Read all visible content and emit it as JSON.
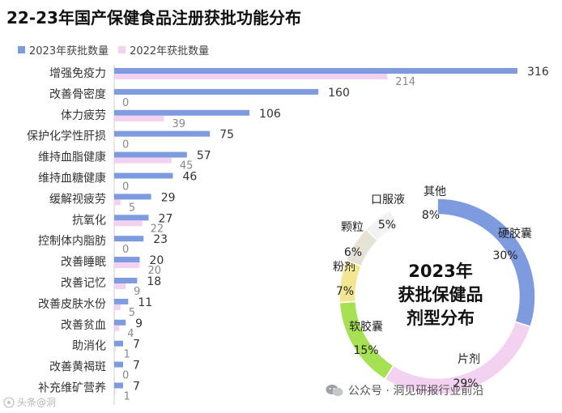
{
  "chart_data": [
    {
      "type": "bar",
      "title": "22-23年国产保健食品注册获批功能分布",
      "orientation": "horizontal",
      "categories": [
        "增强免疫力",
        "改善骨密度",
        "体力疲劳",
        "保护化学性肝损",
        "维持血脂健康",
        "维持血糖健康",
        "缓解视疲劳",
        "抗氧化",
        "控制体内脂肪",
        "改善睡眠",
        "改善记忆",
        "改善皮肤水份",
        "改善贫血",
        "助消化",
        "改善黄褐斑",
        "补充维矿营养"
      ],
      "series": [
        {
          "name": "2023年获批数量",
          "color": "#7e9be0",
          "values": [
            316,
            160,
            106,
            75,
            57,
            46,
            29,
            27,
            23,
            20,
            18,
            11,
            9,
            7,
            7,
            7
          ]
        },
        {
          "name": "2022年获批数量",
          "color": "#f2d2f0",
          "values": [
            214,
            0,
            39,
            0,
            45,
            0,
            5,
            22,
            0,
            20,
            9,
            5,
            4,
            1,
            0,
            1
          ]
        }
      ],
      "xlim": [
        0,
        316
      ],
      "legend": "top-left"
    },
    {
      "type": "pie",
      "style": "donut",
      "title_lines": [
        "2023年",
        "获批保健品",
        "剂型分布"
      ],
      "slices": [
        {
          "label": "硬胶囊",
          "value": 30,
          "display": "30%",
          "color": "#7e9be0"
        },
        {
          "label": "片剂",
          "value": 29,
          "display": "29%",
          "color": "#f2d2f0"
        },
        {
          "label": "软胶囊",
          "value": 15,
          "display": "15%",
          "color": "#a6e053"
        },
        {
          "label": "粉剂",
          "value": 7,
          "display": "7%",
          "color": "#f3e690"
        },
        {
          "label": "颗粒",
          "value": 6,
          "display": "6%",
          "color": "#e6e2d6"
        },
        {
          "label": "口服液",
          "value": 5,
          "display": "5%",
          "color": "#f2f2f2"
        },
        {
          "label": "其他",
          "value": 8,
          "display": "8%",
          "color": "#ffffff"
        }
      ]
    }
  ],
  "watermark": {
    "text": "公众号 · 洞见研报行业前沿"
  },
  "corner_watermark": {
    "text": "头条@洞"
  }
}
